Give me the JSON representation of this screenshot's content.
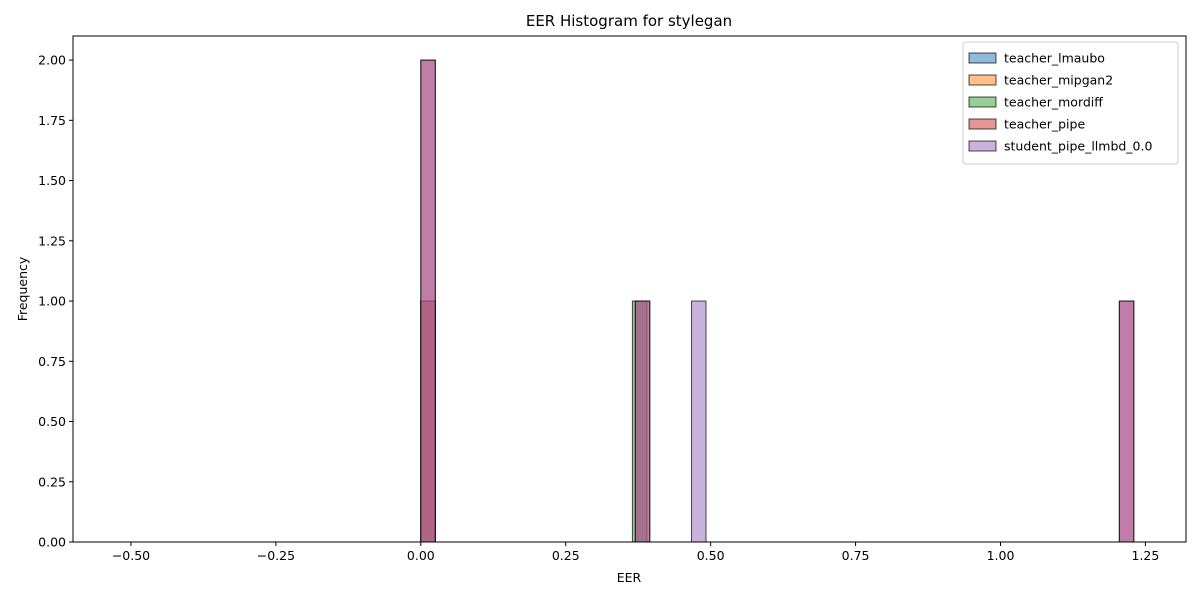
{
  "chart_data": {
    "type": "bar",
    "title": "EER Histogram for stylegan",
    "xlabel": "EER",
    "ylabel": "Frequency",
    "xlim": [
      -0.6,
      1.32
    ],
    "ylim": [
      0,
      2.1
    ],
    "x_ticks": [
      -0.5,
      -0.25,
      0.0,
      0.25,
      0.5,
      0.75,
      1.0,
      1.25
    ],
    "x_tick_labels": [
      "−0.50",
      "−0.25",
      "0.00",
      "0.25",
      "0.50",
      "0.75",
      "1.00",
      "1.25"
    ],
    "y_ticks": [
      0,
      0.25,
      0.5,
      0.75,
      1.0,
      1.25,
      1.5,
      1.75,
      2.0
    ],
    "y_tick_labels": [
      "0.00",
      "0.25",
      "0.50",
      "0.75",
      "1.00",
      "1.25",
      "1.50",
      "1.75",
      "2.00"
    ],
    "grid": false,
    "legend_position": "top-right",
    "series": [
      {
        "name": "teacher_lmaubo",
        "color": "#1f77b4",
        "bins": [
          {
            "x0": 0.0,
            "x1": 0.025,
            "count": 1
          }
        ]
      },
      {
        "name": "teacher_mipgan2",
        "color": "#ff7f0e",
        "bins": [
          {
            "x0": 0.0,
            "x1": 0.025,
            "count": 1
          }
        ]
      },
      {
        "name": "teacher_mordiff",
        "color": "#2ca02c",
        "bins": [
          {
            "x0": 0.365,
            "x1": 0.39,
            "count": 1
          }
        ]
      },
      {
        "name": "teacher_pipe",
        "color": "#d62728",
        "bins": [
          {
            "x0": 0.0,
            "x1": 0.025,
            "count": 2
          },
          {
            "x0": 0.37,
            "x1": 0.395,
            "count": 1
          },
          {
            "x0": 1.205,
            "x1": 1.23,
            "count": 1
          }
        ]
      },
      {
        "name": "student_pipe_llmbd_0.0",
        "color": "#9467bd",
        "bins": [
          {
            "x0": 0.0,
            "x1": 0.025,
            "count": 2
          },
          {
            "x0": 0.37,
            "x1": 0.395,
            "count": 1
          },
          {
            "x0": 0.467,
            "x1": 0.492,
            "count": 1
          },
          {
            "x0": 1.205,
            "x1": 1.23,
            "count": 1
          }
        ]
      }
    ]
  }
}
